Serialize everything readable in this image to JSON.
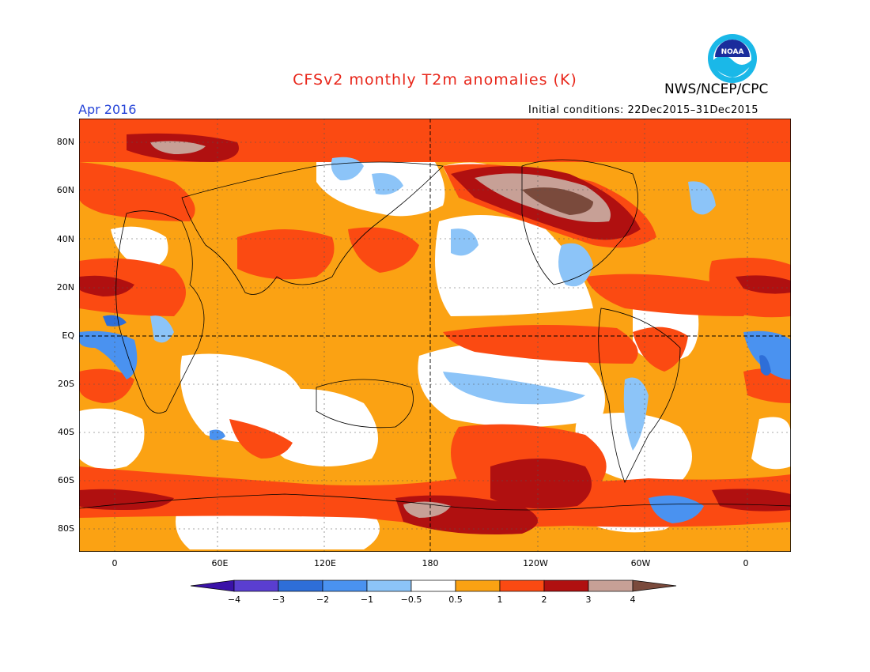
{
  "header": {
    "title": "CFSv2 monthly T2m anomalies (K)",
    "org": "NWS/NCEP/CPC",
    "month": "Apr 2016",
    "initial_conditions": "Initial conditions: 22Dec2015–31Dec2015",
    "logo_text": "NOAA"
  },
  "axes": {
    "lat_labels": [
      "80N",
      "60N",
      "40N",
      "20N",
      "EQ",
      "20S",
      "40S",
      "60S",
      "80S"
    ],
    "lon_labels": [
      "0",
      "60E",
      "120E",
      "180",
      "120W",
      "60W",
      "0"
    ]
  },
  "colorbar": {
    "labels": [
      "−4",
      "−3",
      "−2",
      "−1",
      "−0.5",
      "0.5",
      "1",
      "2",
      "3",
      "4"
    ],
    "colors": [
      "#3a12a8",
      "#5a3ed0",
      "#2e6ed8",
      "#4a92f0",
      "#8cc4f8",
      "#ffffff",
      "#fba213",
      "#fb4a12",
      "#b01010",
      "#c7a096",
      "#7a4a3c"
    ]
  },
  "palette": {
    "ocean_base": "#fba213",
    "neutral": "#ffffff",
    "warm1": "#fb4a12",
    "warm2": "#b01010",
    "warm3": "#c7a096",
    "warm4": "#7a4a3c",
    "cool1": "#8cc4f8",
    "cool2": "#4a92f0",
    "cool3": "#2e6ed8"
  }
}
